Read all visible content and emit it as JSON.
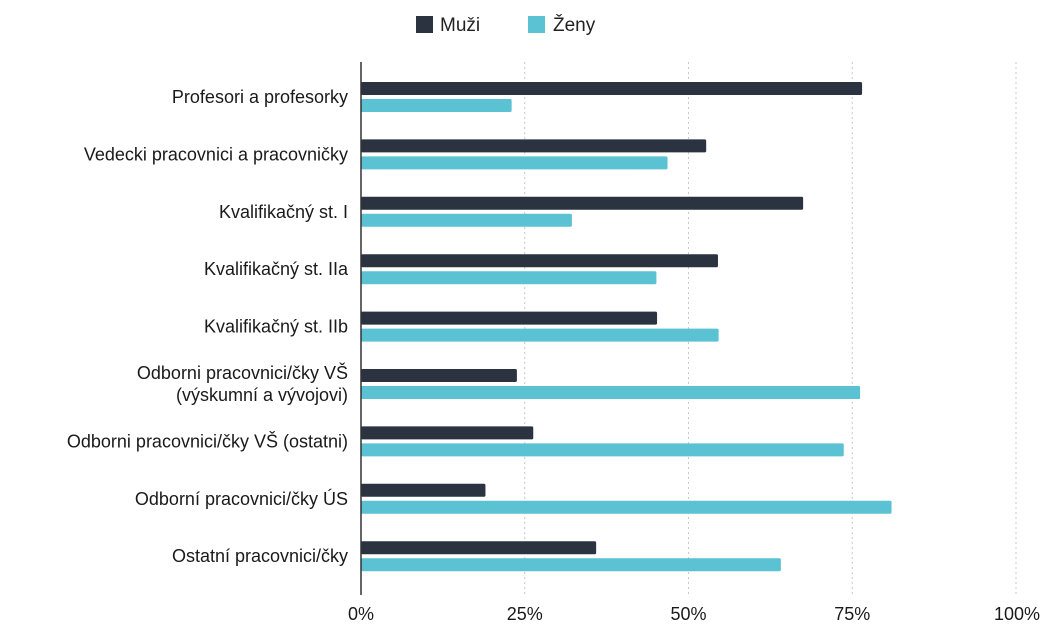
{
  "chart_data": {
    "type": "bar",
    "orientation": "horizontal",
    "categories": [
      [
        "Profesori a profesorky"
      ],
      [
        "Vedecki pracovnici a pracovničky"
      ],
      [
        "Kvalifikačný st. I"
      ],
      [
        "Kvalifikačný st. IIa"
      ],
      [
        "Kvalifikačný st. IIb"
      ],
      [
        "Odborni pracovnici/čky VŠ",
        "(výskumní a vývojovi)"
      ],
      [
        "Odborni pracovnici/čky VŠ (ostatni)"
      ],
      [
        "Odborní pracovnici/čky ÚS"
      ],
      [
        "Ostatní pracovnici/čky"
      ]
    ],
    "series": [
      {
        "name": "Muži",
        "color": "#2b3240",
        "values": [
          76.5,
          52.7,
          67.5,
          54.5,
          45.2,
          23.8,
          26.3,
          19.0,
          35.9
        ]
      },
      {
        "name": "Ženy",
        "color": "#5bc2d3",
        "values": [
          23.0,
          46.8,
          32.2,
          45.1,
          54.6,
          76.2,
          73.7,
          81.0,
          64.1
        ]
      }
    ],
    "xticks": [
      "0%",
      "25%",
      "50%",
      "75%",
      "100%"
    ],
    "xlim": [
      0,
      100
    ],
    "grid": "vertical",
    "legend_position": "top-center"
  }
}
